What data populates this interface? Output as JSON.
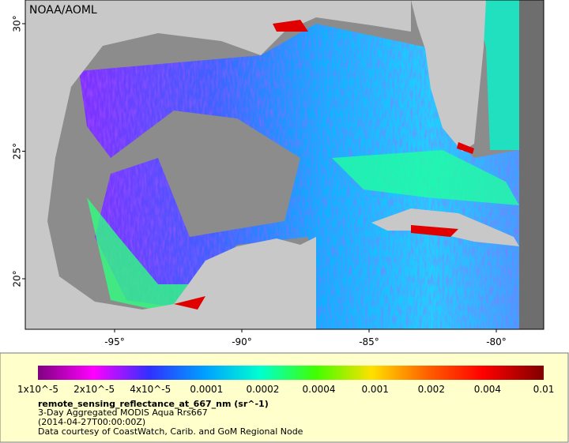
{
  "map": {
    "credit": "NOAA/AOML",
    "lat_ticks": [
      "30°",
      "25°",
      "20°"
    ],
    "lon_ticks": [
      "-95°",
      "-90°",
      "-85°",
      "-80°"
    ]
  },
  "colorbar": {
    "labels": [
      "1x10^-5",
      "2x10^-5",
      "4x10^-5",
      "0.0001",
      "0.0002",
      "0.0004",
      "0.001",
      "0.002",
      "0.004",
      "0.01"
    ]
  },
  "caption": {
    "title": "remote_sensing_reflectance_at_667_nm (sr^-1)",
    "lines": [
      "3-Day Aggregated MODIS Aqua Rrs667",
      "(2014-04-27T00:00:00Z)",
      "Data courtesy of CoastWatch, Carib. and GoM Regional Node"
    ]
  }
}
